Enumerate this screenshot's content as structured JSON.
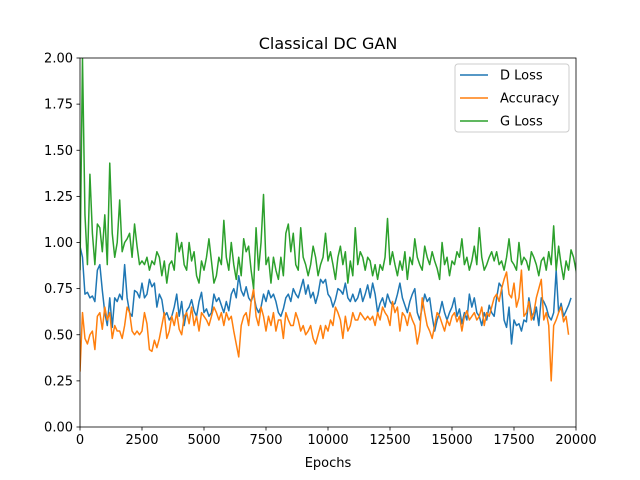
{
  "chart_data": {
    "type": "line",
    "title": "Classical DC GAN",
    "xlabel": "Epochs",
    "ylabel": "",
    "xlim": [
      0,
      20000
    ],
    "ylim": [
      0,
      2.0
    ],
    "xticks": [
      0,
      2500,
      5000,
      7500,
      10000,
      12500,
      15000,
      17500,
      20000
    ],
    "xtick_labels": [
      "0",
      "2500",
      "5000",
      "7500",
      "10000",
      "12500",
      "15000",
      "17500",
      "20000"
    ],
    "yticks": [
      0,
      0.25,
      0.5,
      0.75,
      1.0,
      1.25,
      1.5,
      1.75,
      2.0
    ],
    "ytick_labels": [
      "0.00",
      "0.25",
      "0.50",
      "0.75",
      "1.00",
      "1.25",
      "1.50",
      "1.75",
      "2.00"
    ],
    "grid": false,
    "legend_position": "top-right",
    "x_start": 0,
    "x_step": 100,
    "series": [
      {
        "name": "D Loss",
        "color": "#1f77b4",
        "values": [
          0.98,
          0.92,
          0.72,
          0.73,
          0.7,
          0.71,
          0.68,
          0.85,
          0.88,
          0.74,
          0.62,
          0.55,
          0.7,
          0.54,
          0.7,
          0.68,
          0.72,
          0.69,
          0.88,
          0.7,
          0.62,
          0.6,
          0.74,
          0.73,
          0.7,
          0.78,
          0.7,
          0.72,
          0.8,
          0.76,
          0.78,
          0.65,
          0.72,
          0.69,
          0.6,
          0.62,
          0.58,
          0.6,
          0.65,
          0.72,
          0.6,
          0.68,
          0.55,
          0.63,
          0.65,
          0.69,
          0.63,
          0.6,
          0.68,
          0.73,
          0.62,
          0.64,
          0.6,
          0.62,
          0.72,
          0.68,
          0.7,
          0.66,
          0.62,
          0.68,
          0.63,
          0.72,
          0.75,
          0.7,
          0.82,
          0.74,
          0.71,
          0.76,
          0.7,
          0.68,
          0.72,
          0.65,
          0.62,
          0.65,
          0.72,
          0.68,
          0.74,
          0.7,
          0.72,
          0.68,
          0.62,
          0.6,
          0.64,
          0.7,
          0.72,
          0.68,
          0.75,
          0.72,
          0.7,
          0.75,
          0.8,
          0.72,
          0.77,
          0.7,
          0.73,
          0.67,
          0.72,
          0.8,
          0.78,
          0.8,
          0.72,
          0.7,
          0.65,
          0.69,
          0.75,
          0.74,
          0.72,
          0.78,
          0.7,
          0.68,
          0.72,
          0.68,
          0.7,
          0.75,
          0.68,
          0.72,
          0.77,
          0.7,
          0.78,
          0.72,
          0.62,
          0.67,
          0.7,
          0.65,
          0.72,
          0.68,
          0.66,
          0.67,
          0.72,
          0.78,
          0.7,
          0.66,
          0.62,
          0.68,
          0.72,
          0.75,
          0.62,
          0.58,
          0.65,
          0.72,
          0.68,
          0.7,
          0.6,
          0.52,
          0.58,
          0.62,
          0.68,
          0.62,
          0.58,
          0.62,
          0.65,
          0.7,
          0.6,
          0.64,
          0.56,
          0.62,
          0.58,
          0.72,
          0.65,
          0.7,
          0.62,
          0.6,
          0.55,
          0.62,
          0.58,
          0.66,
          0.62,
          0.6,
          0.7,
          0.78,
          0.76,
          0.58,
          0.54,
          0.65,
          0.45,
          0.58,
          0.55,
          0.56,
          0.52,
          0.58,
          0.57,
          0.7,
          0.62,
          0.58,
          0.65,
          0.55,
          0.7,
          0.68,
          0.65,
          0.6,
          0.58,
          0.62,
          0.85,
          0.62,
          0.67,
          0.6,
          0.63,
          0.66,
          0.7
        ]
      },
      {
        "name": "Accuracy",
        "color": "#ff7f0e",
        "values": [
          0.3,
          0.62,
          0.48,
          0.45,
          0.5,
          0.52,
          0.42,
          0.6,
          0.62,
          0.53,
          0.65,
          0.58,
          0.62,
          0.48,
          0.55,
          0.52,
          0.52,
          0.48,
          0.55,
          0.65,
          0.62,
          0.52,
          0.5,
          0.52,
          0.5,
          0.52,
          0.62,
          0.56,
          0.42,
          0.41,
          0.47,
          0.43,
          0.48,
          0.55,
          0.62,
          0.48,
          0.52,
          0.6,
          0.55,
          0.62,
          0.53,
          0.5,
          0.6,
          0.62,
          0.56,
          0.65,
          0.55,
          0.6,
          0.52,
          0.62,
          0.6,
          0.58,
          0.55,
          0.6,
          0.65,
          0.62,
          0.58,
          0.62,
          0.55,
          0.62,
          0.58,
          0.6,
          0.52,
          0.45,
          0.38,
          0.55,
          0.6,
          0.62,
          0.55,
          0.68,
          0.75,
          0.6,
          0.55,
          0.65,
          0.6,
          0.52,
          0.6,
          0.55,
          0.62,
          0.52,
          0.58,
          0.58,
          0.48,
          0.62,
          0.58,
          0.55,
          0.55,
          0.62,
          0.58,
          0.52,
          0.55,
          0.5,
          0.52,
          0.55,
          0.48,
          0.45,
          0.5,
          0.55,
          0.48,
          0.55,
          0.52,
          0.58,
          0.55,
          0.65,
          0.62,
          0.58,
          0.48,
          0.6,
          0.52,
          0.55,
          0.62,
          0.58,
          0.58,
          0.62,
          0.6,
          0.58,
          0.6,
          0.58,
          0.6,
          0.55,
          0.62,
          0.58,
          0.65,
          0.62,
          0.6,
          0.55,
          0.68,
          0.62,
          0.65,
          0.52,
          0.62,
          0.6,
          0.55,
          0.62,
          0.58,
          0.55,
          0.45,
          0.52,
          0.7,
          0.62,
          0.55,
          0.52,
          0.48,
          0.55,
          0.62,
          0.6,
          0.56,
          0.52,
          0.58,
          0.55,
          0.6,
          0.62,
          0.57,
          0.6,
          0.52,
          0.6,
          0.63,
          0.58,
          0.6,
          0.62,
          0.58,
          0.6,
          0.65,
          0.55,
          0.62,
          0.6,
          0.65,
          0.7,
          0.72,
          0.68,
          0.75,
          0.8,
          0.84,
          0.72,
          0.7,
          0.78,
          0.65,
          0.7,
          0.85,
          0.6,
          0.62,
          0.68,
          0.58,
          0.62,
          0.7,
          0.75,
          0.8,
          0.58,
          0.62,
          0.55,
          0.25,
          0.55,
          0.58,
          0.62,
          0.65,
          0.57,
          0.6,
          0.5
        ]
      },
      {
        "name": "G Loss",
        "color": "#2ca02c",
        "values": [
          0.85,
          2.0,
          1.15,
          0.88,
          1.37,
          1.05,
          0.88,
          1.1,
          1.08,
          0.95,
          1.15,
          0.88,
          1.43,
          1.05,
          0.92,
          1.0,
          1.23,
          0.95,
          1.0,
          1.02,
          1.05,
          0.92,
          1.1,
          0.98,
          0.88,
          0.9,
          0.88,
          0.92,
          0.85,
          0.9,
          0.88,
          0.95,
          0.92,
          0.82,
          0.9,
          0.78,
          0.88,
          0.9,
          0.85,
          1.05,
          0.95,
          1.0,
          0.88,
          0.85,
          1.0,
          0.9,
          0.95,
          0.82,
          0.78,
          0.9,
          0.85,
          0.92,
          1.02,
          0.9,
          0.78,
          0.82,
          0.92,
          0.88,
          1.12,
          0.92,
          0.85,
          1.0,
          0.88,
          0.8,
          0.92,
          0.82,
          1.02,
          0.95,
          0.98,
          0.85,
          0.75,
          1.08,
          0.85,
          1.0,
          1.26,
          0.88,
          0.92,
          0.78,
          0.92,
          0.85,
          0.8,
          0.92,
          0.82,
          1.05,
          1.1,
          0.95,
          1.05,
          0.88,
          0.85,
          1.08,
          0.92,
          0.88,
          0.82,
          0.88,
          0.98,
          0.92,
          0.82,
          0.88,
          0.92,
          1.05,
          0.9,
          0.95,
          0.88,
          0.8,
          0.92,
          0.98,
          0.88,
          0.95,
          0.78,
          0.9,
          0.82,
          1.08,
          0.88,
          0.95,
          0.92,
          0.85,
          0.92,
          0.9,
          0.82,
          0.88,
          0.8,
          0.88,
          0.85,
          0.92,
          1.13,
          0.88,
          0.95,
          0.88,
          0.82,
          0.9,
          0.85,
          0.95,
          0.8,
          0.92,
          0.88,
          1.02,
          0.92,
          0.88,
          0.85,
          0.98,
          0.92,
          0.88,
          0.95,
          0.9,
          0.86,
          0.8,
          1.0,
          0.88,
          0.92,
          0.82,
          0.9,
          0.88,
          0.95,
          0.92,
          1.02,
          0.88,
          0.92,
          0.85,
          0.9,
          0.98,
          0.88,
          1.08,
          0.92,
          0.85,
          0.88,
          0.92,
          0.95,
          0.9,
          0.95,
          0.88,
          0.9,
          0.85,
          0.92,
          1.02,
          0.9,
          0.88,
          0.85,
          1.0,
          0.88,
          0.92,
          0.9,
          0.85,
          0.95,
          0.92,
          0.88,
          0.82,
          0.9,
          0.92,
          0.85,
          0.95,
          0.88,
          1.09,
          0.85,
          0.98,
          0.88,
          0.8,
          0.9,
          0.85,
          0.96,
          0.92,
          0.85,
          0.78
        ]
      }
    ]
  }
}
